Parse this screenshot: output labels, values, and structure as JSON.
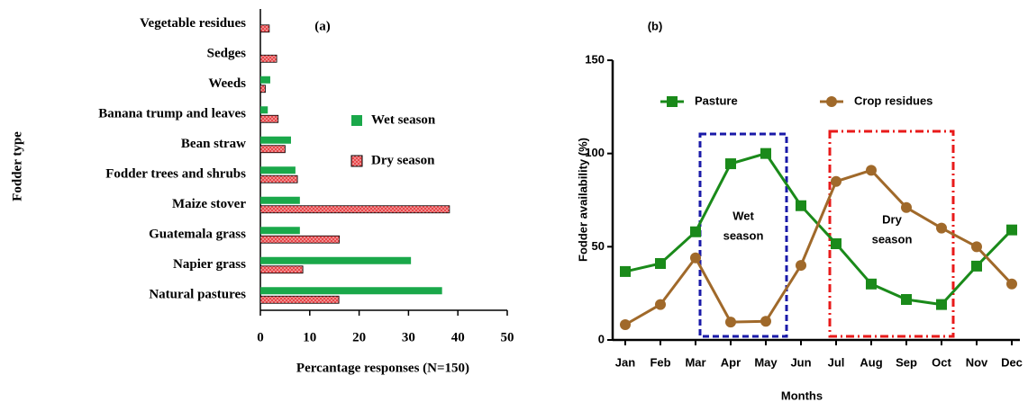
{
  "chart_data": [
    {
      "type": "bar",
      "horizontal": true,
      "panel_label": "(a)",
      "ylabel": "Fodder  type",
      "xlabel": "Percantage responses (N=150)",
      "categories": [
        "Vegetable residues",
        "Sedges",
        "Weeds",
        "Banana trump and leaves",
        "Bean straw",
        "Fodder trees and shrubs",
        "Maize stover",
        "Guatemala grass",
        "Napier grass",
        "Natural pastures"
      ],
      "series": [
        {
          "name": "Wet season",
          "color": "#1aa84a",
          "values": [
            0,
            0,
            2,
            1.5,
            6.2,
            7.1,
            8,
            8,
            30.5,
            36.8
          ]
        },
        {
          "name": "Dry season",
          "color": "#e8474a",
          "hatch": true,
          "values": [
            1.8,
            3.3,
            1,
            3.6,
            5,
            7.5,
            38.3,
            16,
            8.6,
            15.9
          ]
        }
      ],
      "xlim": [
        0,
        50
      ],
      "xticks": [
        0,
        10,
        20,
        30,
        40,
        50
      ]
    },
    {
      "type": "line",
      "panel_label": "(b)",
      "ylabel": "Fodder availability (%)",
      "xlabel": "Months",
      "categories": [
        "Jan",
        "Feb",
        "Mar",
        "Apr",
        "May",
        "Jun",
        "Jul",
        "Aug",
        "Sep",
        "Oct",
        "Nov",
        "Dec"
      ],
      "series": [
        {
          "name": "Pasture",
          "color": "#1a8a1a",
          "marker": "square",
          "values": [
            36.7,
            41,
            58,
            94.5,
            100,
            72,
            51.6,
            30,
            21.7,
            19,
            39.6,
            59
          ]
        },
        {
          "name": "Crop residues",
          "color": "#a0692a",
          "marker": "circle",
          "values": [
            8.2,
            19,
            44,
            9.6,
            10,
            40,
            85,
            91,
            71,
            60,
            50,
            30
          ]
        }
      ],
      "annotations": [
        {
          "lines": [
            "Wet",
            "season"
          ],
          "color": "#1a1aa8"
        },
        {
          "lines": [
            "Dry",
            "season"
          ],
          "color": "#e81a1a"
        }
      ],
      "ylim": [
        0,
        150
      ],
      "yticks": [
        0,
        50,
        100,
        150
      ]
    }
  ]
}
